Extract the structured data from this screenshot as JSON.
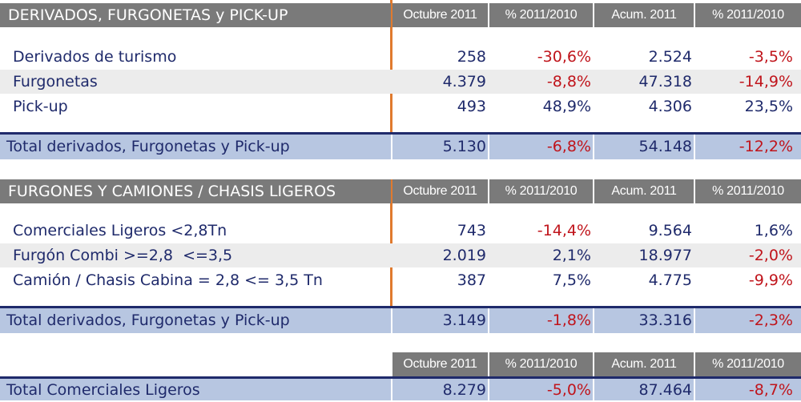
{
  "section1": {
    "title": "DERIVADOS, FURGONETAS y PICK-UP",
    "columns": [
      "Octubre 2011",
      "% 2011/2010",
      "Acum. 2011",
      "% 2011/2010"
    ],
    "rows": [
      {
        "label": "Derivados de turismo",
        "oct": "258",
        "pct1": "-30,6%",
        "acum": "2.524",
        "pct2": "-3,5%"
      },
      {
        "label": "Furgonetas",
        "oct": "4.379",
        "pct1": "-8,8%",
        "acum": "47.318",
        "pct2": "-14,9%"
      },
      {
        "label": "Pick-up",
        "oct": "493",
        "pct1": "48,9%",
        "acum": "4.306",
        "pct2": "23,5%"
      }
    ],
    "total": {
      "label": "Total derivados, Furgonetas y Pick-up",
      "oct": "5.130",
      "pct1": "-6,8%",
      "acum": "54.148",
      "pct2": "-12,2%"
    }
  },
  "section2": {
    "title": "FURGONES Y CAMIONES / CHASIS LIGEROS",
    "columns": [
      "Octubre 2011",
      "% 2011/2010",
      "Acum. 2011",
      "% 2011/2010"
    ],
    "rows": [
      {
        "label": "Comerciales Ligeros <2,8Tn",
        "oct": "743",
        "pct1": "-14,4%",
        "acum": "9.564",
        "pct2": "1,6%"
      },
      {
        "label": "Furgón Combi >=2,8  <=3,5",
        "oct": "2.019",
        "pct1": "2,1%",
        "acum": "18.977",
        "pct2": "-2,0%"
      },
      {
        "label": "Camión / Chasis Cabina = 2,8 <= 3,5 Tn",
        "oct": "387",
        "pct1": "7,5%",
        "acum": "4.775",
        "pct2": "-9,9%"
      }
    ],
    "total": {
      "label": "Total derivados, Furgonetas y Pick-up",
      "oct": "3.149",
      "pct1": "-1,8%",
      "acum": "33.316",
      "pct2": "-2,3%"
    }
  },
  "section3": {
    "columns": [
      "Octubre 2011",
      "% 2011/2010",
      "Acum. 2011",
      "% 2011/2010"
    ],
    "total": {
      "label": "Total Comerciales Ligeros",
      "oct": "8.279",
      "pct1": "-5,0%",
      "acum": "87.464",
      "pct2": "-8,7%"
    }
  },
  "colors": {
    "header_bg": "#7a7a7a",
    "total_bg": "#b7c6e1",
    "text": "#1f2a6b",
    "negative": "#c0141b",
    "divider": "#e07a2e"
  }
}
